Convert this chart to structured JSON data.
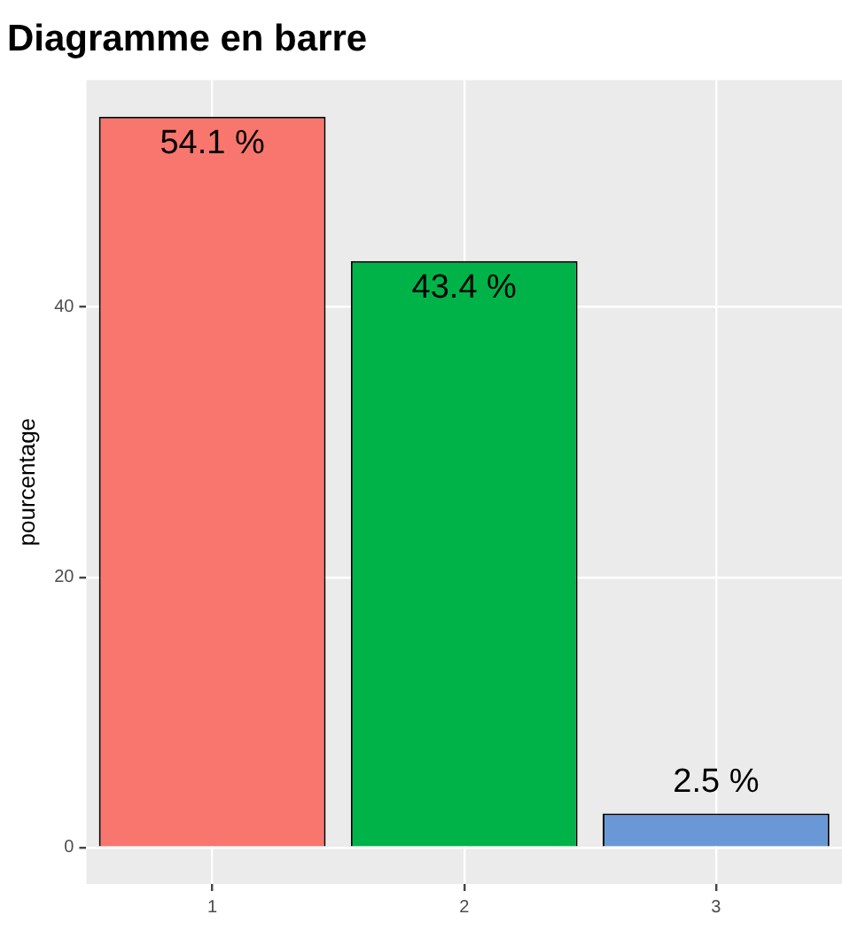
{
  "chart_data": {
    "type": "bar",
    "title": "Diagramme en barre",
    "ylabel": "pourcentage",
    "categories": [
      "1",
      "2",
      "3"
    ],
    "values": [
      54.1,
      43.4,
      2.5
    ],
    "colors": [
      "#f8766d",
      "#00b348",
      "#6a98d6"
    ],
    "value_labels": [
      "54.1 %",
      "43.4 %",
      "2.5 %"
    ],
    "ylim": [
      -2.705,
      56.805
    ],
    "yticks": [
      0,
      20,
      40
    ],
    "grid": true
  }
}
